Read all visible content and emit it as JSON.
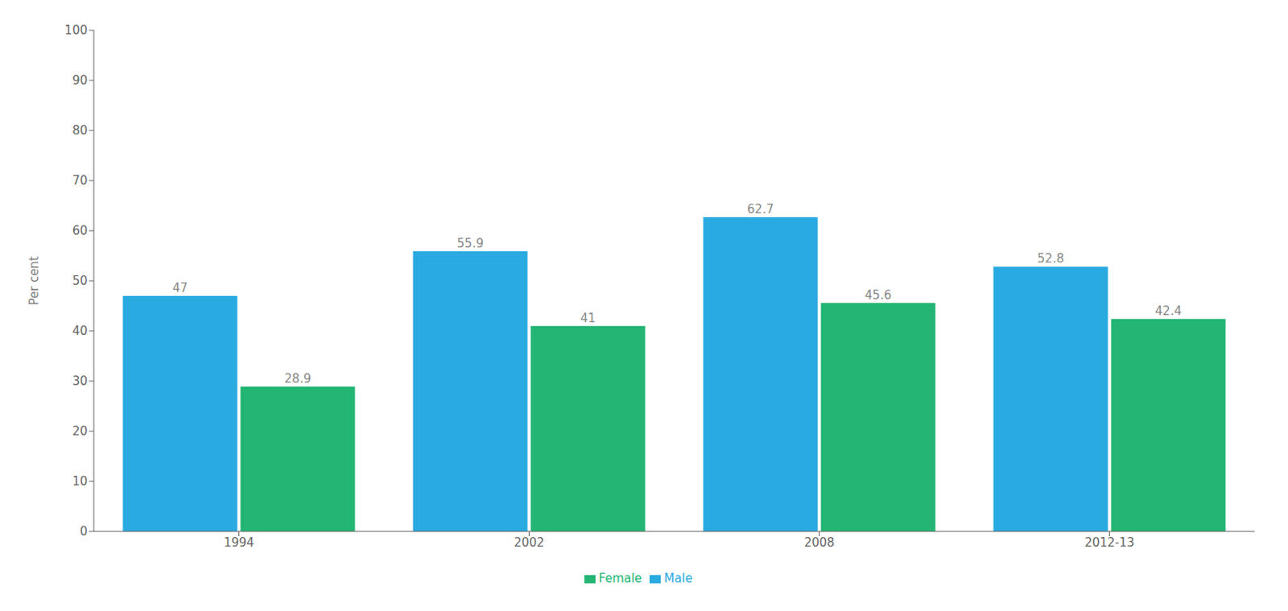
{
  "chart_data": {
    "type": "bar",
    "categories": [
      "1994",
      "2002",
      "2008",
      "2012-13"
    ],
    "series": [
      {
        "name": "Male",
        "color": "#29AAE1",
        "values": [
          47,
          55.9,
          62.7,
          52.8
        ]
      },
      {
        "name": "Female",
        "color": "#23B573",
        "values": [
          28.9,
          41,
          45.6,
          42.4
        ]
      }
    ],
    "ylabel": "Per cent",
    "ylim": [
      0,
      100
    ],
    "yticks": [
      0,
      10,
      20,
      30,
      40,
      50,
      60,
      70,
      80,
      90,
      100
    ],
    "grid": false,
    "legend": "bottom",
    "data_labels": true
  }
}
